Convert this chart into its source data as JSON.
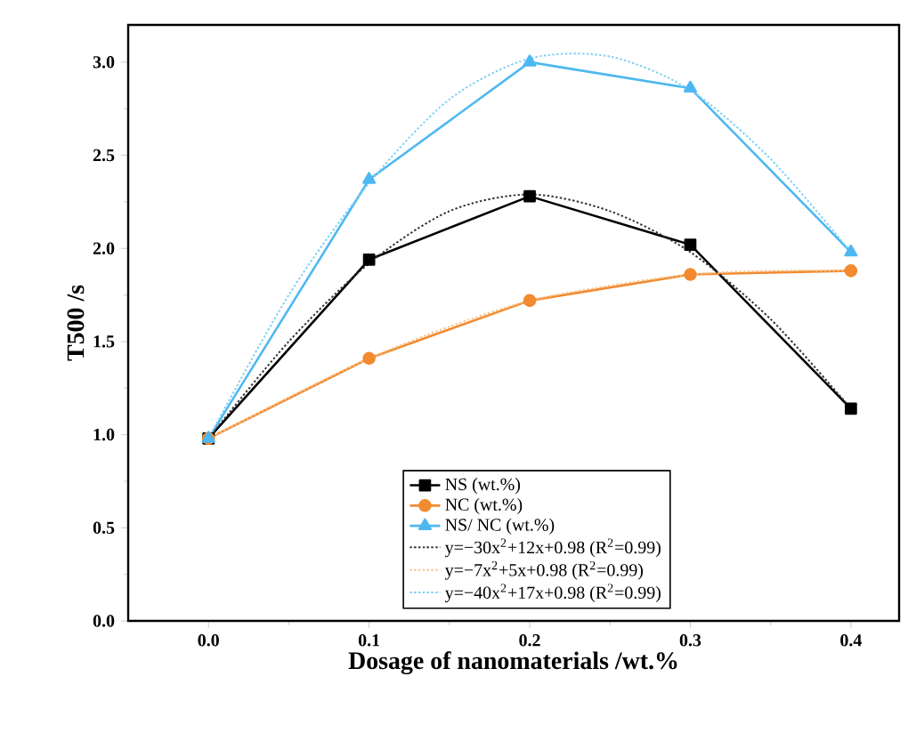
{
  "chart_data": {
    "type": "line",
    "xlabel": "Dosage of nanomaterials /wt.%",
    "ylabel": "T500 /s",
    "x": [
      0,
      0.1,
      0.2,
      0.3,
      0.4
    ],
    "xlim": [
      -0.05,
      0.43
    ],
    "ylim": [
      0,
      3.2
    ],
    "xticks": [
      {
        "value": 0,
        "label": "0.0"
      },
      {
        "value": 0.1,
        "label": "0.1"
      },
      {
        "value": 0.2,
        "label": "0.2"
      },
      {
        "value": 0.3,
        "label": "0.3"
      },
      {
        "value": 0.4,
        "label": "0.4"
      }
    ],
    "yticks": [
      {
        "value": 0,
        "label": "0.0"
      },
      {
        "value": 0.5,
        "label": "0.5"
      },
      {
        "value": 1,
        "label": "1.0"
      },
      {
        "value": 1.5,
        "label": "1.5"
      },
      {
        "value": 2,
        "label": "2.0"
      },
      {
        "value": 2.5,
        "label": "2.5"
      },
      {
        "value": 3,
        "label": "3.0"
      }
    ],
    "legend": "bottom",
    "series": [
      {
        "name": "NS (wt.%)",
        "color": "#000000",
        "marker": "square",
        "line_style": "solid",
        "values": [
          0.98,
          1.94,
          2.28,
          2.02,
          1.14
        ]
      },
      {
        "name": "NC (wt.%)",
        "color": "#f28a30",
        "marker": "circle",
        "line_style": "solid",
        "values": [
          0.98,
          1.41,
          1.72,
          1.86,
          1.88
        ]
      },
      {
        "name": "NS/ NC (wt.%)",
        "color": "#4db8f0",
        "marker": "triangle",
        "line_style": "solid",
        "values": [
          0.98,
          2.37,
          3.0,
          2.86,
          1.98
        ]
      },
      {
        "name": "y=−30x$^{2}$+12x+0.98 (R$^{2}$=0.99)",
        "color": "#333333",
        "marker": "none",
        "line_style": "dotted",
        "x": [
          0,
          0.05,
          0.1,
          0.15,
          0.2,
          0.25,
          0.3,
          0.35,
          0.4
        ],
        "values": [
          0.98,
          1.5,
          1.92,
          2.2,
          2.29,
          2.2,
          1.98,
          1.62,
          1.14
        ]
      },
      {
        "name": "y=−7x$^{2}$+5x+0.98 (R$^{2}$=0.99)",
        "color": "#f5c48a",
        "marker": "none",
        "line_style": "dotted",
        "x": [
          0,
          0.05,
          0.1,
          0.15,
          0.2,
          0.25,
          0.3,
          0.35,
          0.4
        ],
        "values": [
          0.98,
          1.2,
          1.41,
          1.58,
          1.72,
          1.8,
          1.86,
          1.88,
          1.88
        ]
      },
      {
        "name": "y=−40x$^{2}$+17x+0.98 (R$^{2}$=0.99)",
        "color": "#7fd0f5",
        "marker": "none",
        "line_style": "dotted",
        "x": [
          0,
          0.05,
          0.1,
          0.15,
          0.2,
          0.25,
          0.3,
          0.35,
          0.4
        ],
        "values": [
          0.98,
          1.75,
          2.35,
          2.8,
          3.02,
          3.03,
          2.85,
          2.48,
          1.98
        ]
      }
    ]
  }
}
